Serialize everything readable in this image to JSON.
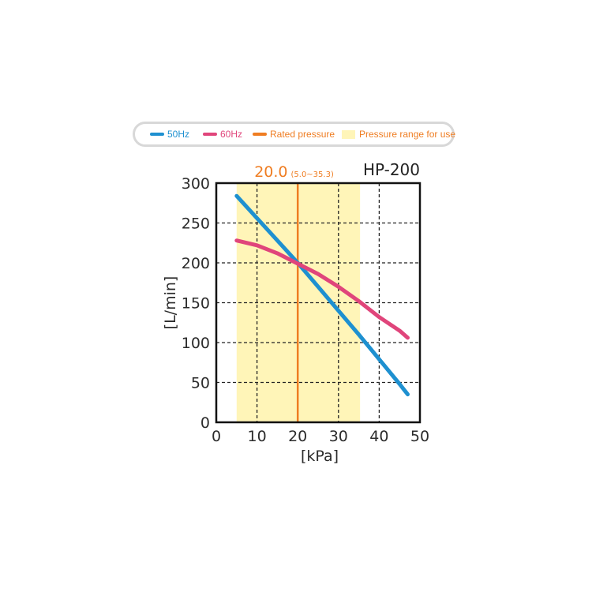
{
  "legend": {
    "items": [
      {
        "label": "50Hz",
        "color": "#1e90d0",
        "kind": "line"
      },
      {
        "label": "60Hz",
        "color": "#e0457b",
        "kind": "line"
      },
      {
        "label": "Rated pressure",
        "color": "#ef7d22",
        "kind": "line"
      },
      {
        "label": "Pressure range for use",
        "color": "#fff5b8",
        "kind": "box"
      }
    ]
  },
  "chart_data": {
    "type": "line",
    "title": "HP-200",
    "rated_pressure": {
      "value": 20.0,
      "label": "20.0",
      "range_label": "(5.0~35.3)"
    },
    "use_range": [
      5.0,
      35.3
    ],
    "xlabel": "[kPa]",
    "ylabel": "[L/min]",
    "xlim": [
      0,
      50
    ],
    "ylim": [
      0,
      300
    ],
    "xticks": [
      0,
      10,
      20,
      30,
      40,
      50
    ],
    "yticks": [
      0,
      50,
      100,
      150,
      200,
      250,
      300
    ],
    "grid": true,
    "series": [
      {
        "name": "50Hz",
        "color": "#1e90d0",
        "x": [
          5,
          10,
          15,
          20,
          25,
          30,
          35,
          40,
          45,
          47
        ],
        "y": [
          284,
          256,
          228,
          200,
          170,
          140,
          110,
          79,
          48,
          35
        ]
      },
      {
        "name": "60Hz",
        "color": "#e0457b",
        "x": [
          5,
          10,
          15,
          20,
          25,
          30,
          35,
          40,
          45,
          47
        ],
        "y": [
          228,
          222,
          212,
          199,
          186,
          170,
          152,
          132,
          115,
          106
        ]
      }
    ]
  }
}
